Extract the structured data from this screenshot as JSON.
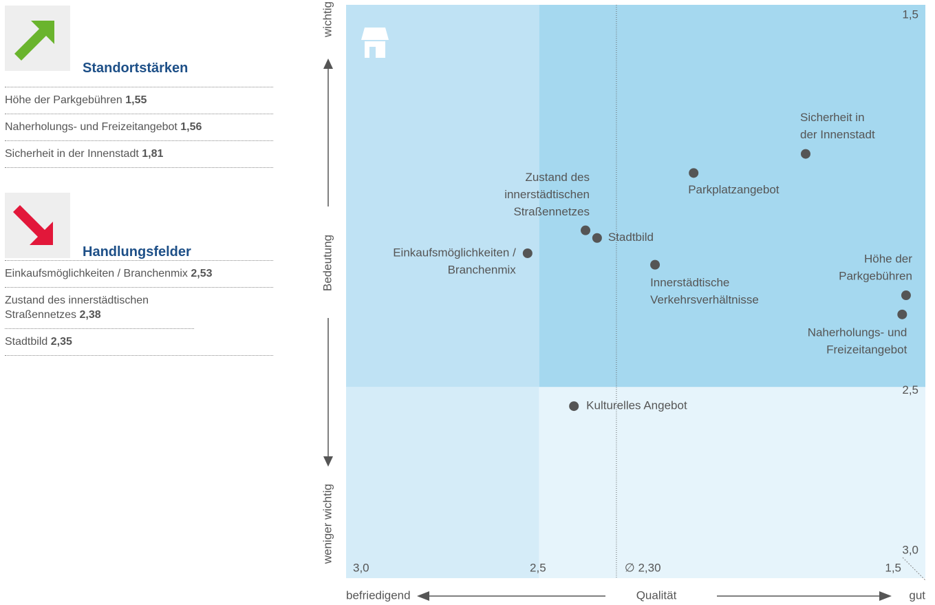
{
  "sidebar": {
    "sections": [
      {
        "title": "Standortstärken",
        "items": [
          {
            "text": "Höhe der Parkgebühren",
            "value": "1,55"
          },
          {
            "text": "Naherholungs- und Freizeitangebot",
            "value": "1,56"
          },
          {
            "text": "Sicherheit in der Innenstadt",
            "value": "1,81"
          }
        ]
      },
      {
        "title": "Handlungsfelder",
        "items": [
          {
            "text": "Einkaufsmöglichkeiten / Branchenmix",
            "value": "2,53"
          },
          {
            "text": "Zustand des innerstädtischen Straßennetzes",
            "value": "2,38"
          },
          {
            "text": "Stadtbild",
            "value": "2,35"
          }
        ]
      }
    ]
  },
  "chart_data": {
    "type": "scatter",
    "y_axis": {
      "top": "wichtig",
      "middle": "Bedeutung",
      "bottom": "weniger wichtig"
    },
    "x_axis": {
      "left": "befriedigend",
      "middle": "Qualität",
      "right": "gut"
    },
    "xlim": [
      3.0,
      1.5
    ],
    "xticks": [
      {
        "value": 3.0,
        "label": "3,0"
      },
      {
        "value": 2.5,
        "label": "2,5"
      },
      {
        "value": 1.5,
        "label": "1,5"
      }
    ],
    "ylim": [
      1.5,
      3.0
    ],
    "yticks": [
      {
        "value": 1.5,
        "label": "1,5"
      },
      {
        "value": 2.5,
        "label": "2,5"
      },
      {
        "value": 3.0,
        "label": "3,0"
      }
    ],
    "average": {
      "value": 2.3,
      "label": "∅ 2,30"
    },
    "color": "#555555",
    "points": [
      {
        "label": [
          "Sicherheit in",
          "der Innenstadt"
        ],
        "x": 1.81,
        "y": 1.89
      },
      {
        "label": [
          "Parkplatzangebot"
        ],
        "x": 2.1,
        "y": 1.94
      },
      {
        "label": [
          "Zustand des",
          "innerstädtischen",
          "Straßennetzes"
        ],
        "x": 2.38,
        "y": 2.09
      },
      {
        "label": [
          "Stadtbild"
        ],
        "x": 2.35,
        "y": 2.11
      },
      {
        "label": [
          "Einkaufsmöglichkeiten /",
          "Branchenmix"
        ],
        "x": 2.53,
        "y": 2.15
      },
      {
        "label": [
          "Innerstädtische",
          "Verkehrsverhältnisse"
        ],
        "x": 2.2,
        "y": 2.18
      },
      {
        "label": [
          "Höhe der",
          "Parkgebühren"
        ],
        "x": 1.55,
        "y": 2.26
      },
      {
        "label": [
          "Naherholungs- und",
          "Freizeitangebot"
        ],
        "x": 1.56,
        "y": 2.31
      },
      {
        "label": [
          "Kulturelles Angebot"
        ],
        "x": 2.41,
        "y": 2.55
      }
    ]
  }
}
